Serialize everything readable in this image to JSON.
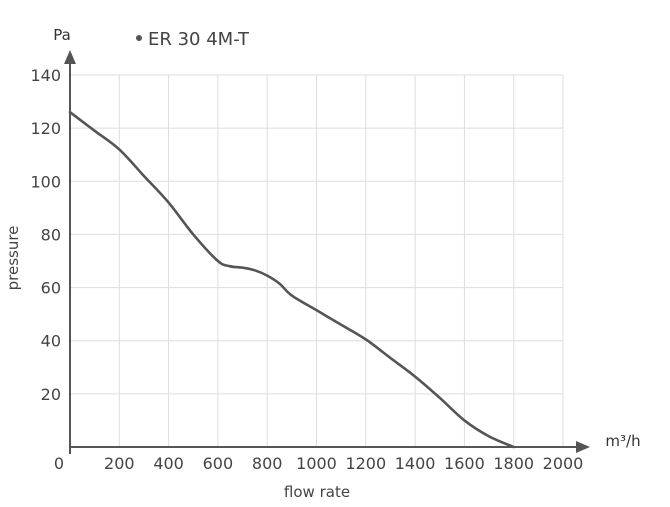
{
  "chart_data": {
    "type": "line",
    "title": "",
    "xlabel": "flow rate",
    "ylabel": "pressure",
    "x_unit": "m³/h",
    "y_unit": "Pa",
    "xlim": [
      0,
      2000
    ],
    "ylim": [
      0,
      140
    ],
    "x_ticks": [
      0,
      200,
      400,
      600,
      800,
      1000,
      1200,
      1400,
      1600,
      1800,
      2000
    ],
    "y_ticks": [
      20,
      40,
      60,
      80,
      100,
      120,
      140
    ],
    "grid": true,
    "legend_position": "top-center",
    "colors": {
      "line": "#555555",
      "grid": "#dddddd",
      "axis": "#555555",
      "text": "#444444"
    },
    "series": [
      {
        "name": "ER 30 4M-T",
        "x": [
          0,
          100,
          200,
          300,
          400,
          500,
          600,
          650,
          700,
          750,
          800,
          850,
          900,
          1000,
          1100,
          1200,
          1300,
          1400,
          1500,
          1600,
          1700,
          1800
        ],
        "y": [
          126,
          119,
          112,
          102,
          92,
          80,
          70,
          68,
          67.5,
          66.5,
          64.5,
          61.5,
          57,
          51.5,
          46,
          40.5,
          33.5,
          26.5,
          18.5,
          10,
          4,
          0
        ]
      }
    ]
  }
}
